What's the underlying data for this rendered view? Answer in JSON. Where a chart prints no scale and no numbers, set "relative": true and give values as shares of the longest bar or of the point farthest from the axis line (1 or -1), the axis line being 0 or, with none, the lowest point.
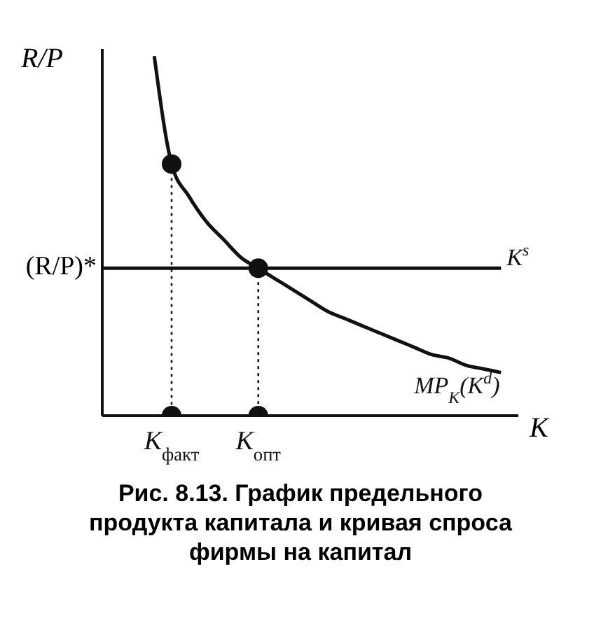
{
  "chart_data": {
    "type": "line",
    "relative": true,
    "title": "Рис. 8.13. График предельного продукта капитала и кривая спроса фирмы на капитал",
    "xlabel": "K",
    "ylabel": "R/P",
    "categories": [
      null,
      null,
      null,
      null,
      "K$_{факт}$",
      null,
      null,
      null,
      null,
      "K$_{опт}$",
      null,
      null,
      null,
      null,
      null,
      null,
      null,
      null,
      null,
      null,
      null,
      null,
      null,
      null,
      null
    ],
    "series": [
      {
        "name": "MP$_{K}$(K$^{d}$)",
        "color": "#111111",
        "values": [
          null,
          null,
          null,
          1,
          0.7,
          0.61,
          0.54,
          0.49,
          0.44,
          0.41,
          0.38,
          0.35,
          0.32,
          0.29,
          0.27,
          0.25,
          0.23,
          0.21,
          0.19,
          0.17,
          0.16,
          0.14,
          0.13,
          0.12,
          null
        ]
      },
      {
        "name": "K$^{s}$",
        "color": "#111111",
        "values": [
          0.41,
          0.41,
          0.41,
          0.41,
          0.41,
          0.41,
          0.41,
          0.41,
          0.41,
          0.41,
          0.41,
          0.41,
          0.41,
          0.41,
          0.41,
          0.41,
          0.41,
          0.41,
          0.41,
          0.41,
          0.41,
          0.41,
          0.41,
          0.41,
          null
        ]
      },
      {
        "type": "scatter",
        "color": "#111111",
        "line_style": "dotted",
        "values": [
          null,
          null,
          null,
          null,
          0.7,
          null,
          null,
          null,
          null,
          0.41,
          null,
          null,
          null,
          null,
          null,
          null,
          null,
          null,
          null,
          null,
          null,
          null,
          null,
          null,
          null
        ]
      },
      {
        "type": "scatter",
        "color": "#111111",
        "values": [
          null,
          null,
          null,
          null,
          0,
          null,
          null,
          null,
          null,
          0,
          null,
          null,
          null,
          null,
          null,
          null,
          null,
          null,
          null,
          null,
          null,
          null,
          null,
          null,
          null
        ]
      }
    ],
    "annotations": [
      "(R/P)*"
    ]
  }
}
